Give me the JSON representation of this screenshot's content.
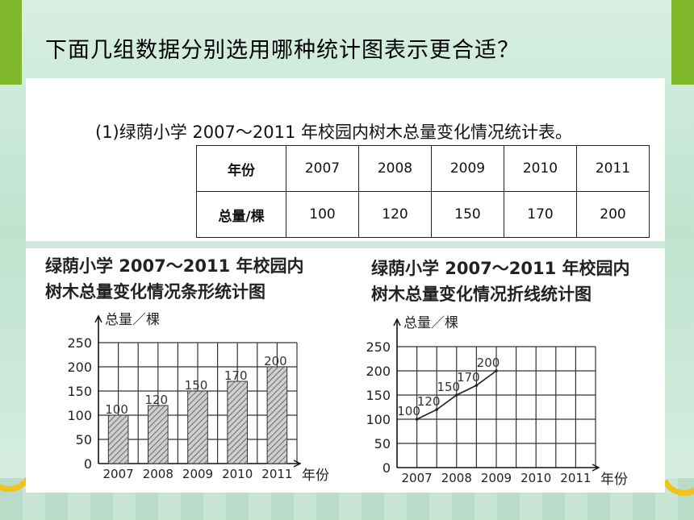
{
  "heading": "下面几组数据分别选用哪种统计图表示更合适？",
  "table": {
    "title": "(1)绿荫小学 2007～2011 年校园内树木总量变化情况统计表。",
    "row_headers": [
      "年份",
      "总量/棵"
    ],
    "years": [
      "2007",
      "2008",
      "2009",
      "2010",
      "2011"
    ],
    "totals": [
      "100",
      "120",
      "150",
      "170",
      "200"
    ]
  },
  "bar_chart": {
    "title_line1": "绿荫小学 2007～2011 年校园内",
    "title_line2": "树木总量变化情况条形统计图"
  },
  "line_chart": {
    "title_line1": "绿荫小学 2007～2011 年校园内",
    "title_line2": "树木总量变化情况折线统计图"
  },
  "colors": {
    "accent": "#7fb82a",
    "arc": "#f2c21b"
  },
  "chart_data": [
    {
      "type": "bar",
      "title": "绿荫小学 2007～2011 年校园内树木总量变化情况条形统计图",
      "categories": [
        "2007",
        "2008",
        "2009",
        "2010",
        "2011"
      ],
      "values": [
        100,
        120,
        150,
        170,
        200
      ],
      "data_labels": [
        "100",
        "120",
        "150",
        "170",
        "200"
      ],
      "xlabel": "年份",
      "ylabel": "总量／棵",
      "ylim": [
        0,
        250
      ],
      "yticks": [
        "0",
        "50",
        "100",
        "150",
        "200",
        "250"
      ],
      "grid": true
    },
    {
      "type": "line",
      "title": "绿荫小学 2007～2011 年校园内树木总量变化情况折线统计图",
      "categories": [
        "2007",
        "2008",
        "2009",
        "2010",
        "2011"
      ],
      "values": [
        100,
        120,
        150,
        170,
        200
      ],
      "data_labels": [
        "100",
        "120",
        "150",
        "170",
        "200"
      ],
      "xlabel": "年份",
      "ylabel": "总量／棵",
      "ylim": [
        0,
        250
      ],
      "yticks": [
        "0",
        "50",
        "100",
        "150",
        "200",
        "250"
      ],
      "grid": true
    }
  ]
}
